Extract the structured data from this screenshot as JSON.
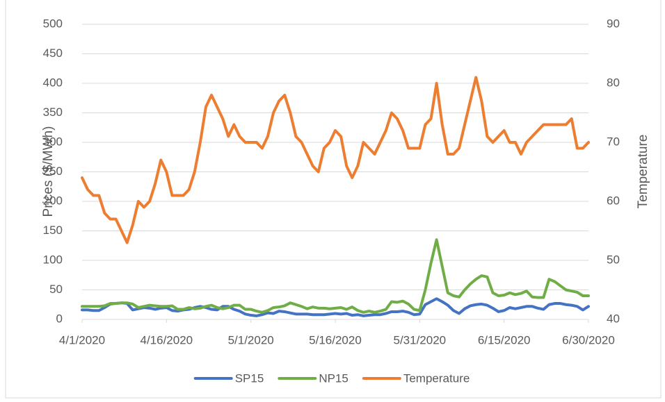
{
  "chart_data": {
    "type": "line",
    "x": [
      "4/1/2020",
      "4/2/2020",
      "4/3/2020",
      "4/4/2020",
      "4/5/2020",
      "4/6/2020",
      "4/7/2020",
      "4/8/2020",
      "4/9/2020",
      "4/10/2020",
      "4/11/2020",
      "4/12/2020",
      "4/13/2020",
      "4/14/2020",
      "4/15/2020",
      "4/16/2020",
      "4/17/2020",
      "4/18/2020",
      "4/19/2020",
      "4/20/2020",
      "4/21/2020",
      "4/22/2020",
      "4/23/2020",
      "4/24/2020",
      "4/25/2020",
      "4/26/2020",
      "4/27/2020",
      "4/28/2020",
      "4/29/2020",
      "4/30/2020",
      "5/1/2020",
      "5/2/2020",
      "5/3/2020",
      "5/4/2020",
      "5/5/2020",
      "5/6/2020",
      "5/7/2020",
      "5/8/2020",
      "5/9/2020",
      "5/10/2020",
      "5/11/2020",
      "5/12/2020",
      "5/13/2020",
      "5/14/2020",
      "5/15/2020",
      "5/16/2020",
      "5/17/2020",
      "5/18/2020",
      "5/19/2020",
      "5/20/2020",
      "5/21/2020",
      "5/22/2020",
      "5/23/2020",
      "5/24/2020",
      "5/25/2020",
      "5/26/2020",
      "5/27/2020",
      "5/28/2020",
      "5/29/2020",
      "5/30/2020",
      "5/31/2020",
      "6/1/2020",
      "6/2/2020",
      "6/3/2020",
      "6/4/2020",
      "6/5/2020",
      "6/6/2020",
      "6/7/2020",
      "6/8/2020",
      "6/9/2020",
      "6/10/2020",
      "6/11/2020",
      "6/12/2020",
      "6/13/2020",
      "6/14/2020",
      "6/15/2020",
      "6/16/2020",
      "6/17/2020",
      "6/18/2020",
      "6/19/2020",
      "6/20/2020",
      "6/21/2020",
      "6/22/2020",
      "6/23/2020",
      "6/24/2020",
      "6/25/2020",
      "6/26/2020",
      "6/27/2020",
      "6/28/2020",
      "6/29/2020",
      "6/30/2020"
    ],
    "xticks": [
      "4/1/2020",
      "4/16/2020",
      "5/1/2020",
      "5/16/2020",
      "5/31/2020",
      "6/15/2020",
      "6/30/2020"
    ],
    "y_label": "Prices ($/MWh)",
    "y2_label": "Temperature",
    "ylim": [
      0,
      500
    ],
    "yticks": [
      0,
      50,
      100,
      150,
      200,
      250,
      300,
      350,
      400,
      450,
      500
    ],
    "y2lim": [
      40,
      90
    ],
    "y2ticks": [
      40,
      50,
      60,
      70,
      80,
      90
    ],
    "grid": true,
    "legend": "bottom",
    "series": [
      {
        "name": "SP15",
        "color": "#4472c4",
        "values": [
          16,
          16,
          15,
          15,
          20,
          26,
          27,
          28,
          27,
          16,
          18,
          20,
          19,
          17,
          19,
          20,
          15,
          14,
          16,
          17,
          20,
          22,
          20,
          17,
          16,
          22,
          22,
          17,
          14,
          9,
          7,
          6,
          8,
          11,
          10,
          14,
          13,
          11,
          9,
          9,
          9,
          8,
          8,
          8,
          9,
          10,
          9,
          10,
          7,
          8,
          6,
          7,
          8,
          8,
          10,
          13,
          13,
          14,
          12,
          8,
          9,
          25,
          30,
          35,
          30,
          24,
          15,
          10,
          18,
          23,
          25,
          26,
          24,
          19,
          13,
          15,
          20,
          18,
          20,
          22,
          22,
          19,
          17,
          25,
          27,
          27,
          25,
          24,
          22,
          16,
          22
        ]
      },
      {
        "name": "NP15",
        "color": "#70ad47",
        "values": [
          22,
          22,
          22,
          22,
          23,
          27,
          27,
          28,
          28,
          26,
          20,
          22,
          24,
          23,
          22,
          22,
          23,
          17,
          17,
          20,
          18,
          19,
          22,
          24,
          20,
          18,
          20,
          24,
          24,
          17,
          17,
          14,
          12,
          15,
          20,
          21,
          23,
          28,
          25,
          22,
          18,
          21,
          19,
          19,
          18,
          19,
          20,
          17,
          21,
          15,
          12,
          14,
          12,
          14,
          17,
          30,
          29,
          31,
          26,
          17,
          15,
          50,
          95,
          135,
          90,
          45,
          40,
          38,
          50,
          60,
          68,
          74,
          72,
          45,
          40,
          41,
          45,
          42,
          44,
          48,
          38,
          37,
          37,
          68,
          64,
          57,
          50,
          48,
          46,
          40,
          40
        ]
      },
      {
        "name": "Temperature",
        "color": "#ed7d31",
        "axis": "y2",
        "values": [
          64,
          62,
          61,
          61,
          58,
          57,
          57,
          55,
          53,
          56,
          60,
          59,
          60,
          63,
          67,
          65,
          61,
          61,
          61,
          62,
          65,
          70,
          76,
          78,
          76,
          74,
          71,
          73,
          71,
          70,
          70,
          70,
          69,
          71,
          75,
          77,
          78,
          75,
          71,
          70,
          68,
          66,
          65,
          69,
          70,
          72,
          71,
          66,
          64,
          66,
          70,
          69,
          68,
          70,
          72,
          75,
          74,
          72,
          69,
          69,
          69,
          73,
          74,
          80,
          73,
          68,
          68,
          69,
          73,
          77,
          81,
          77,
          71,
          70,
          71,
          72,
          70,
          70,
          68,
          70,
          71,
          72,
          73,
          73,
          73,
          73,
          73,
          74,
          69,
          69,
          70
        ]
      }
    ]
  }
}
